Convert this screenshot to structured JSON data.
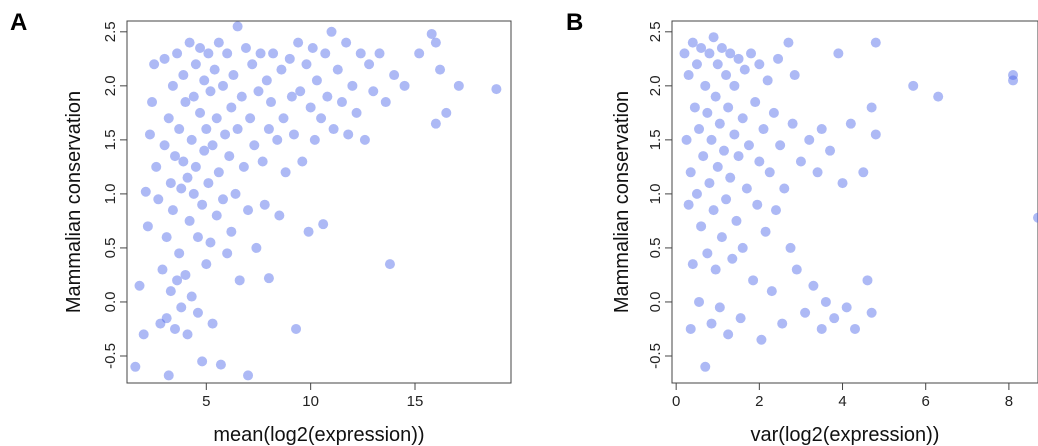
{
  "chart_data": [
    {
      "type": "scatter",
      "panel_label": "A",
      "title": "",
      "xlabel": "mean(log2(expression))",
      "ylabel": "Mammalian conservation",
      "xlim": [
        1.2,
        19.6
      ],
      "ylim": [
        -0.75,
        2.6
      ],
      "xticks": [
        5,
        10,
        15
      ],
      "yticks": [
        -0.5,
        0.0,
        0.5,
        1.0,
        1.5,
        2.0,
        2.5
      ],
      "ytick_labels": [
        "-0.5",
        "0.0",
        "0.5",
        "1.0",
        "1.5",
        "2.0",
        "2.5"
      ],
      "grid": false,
      "marker_color": "#4a63e8",
      "series": [
        {
          "points": [
            [
              1.6,
              -0.6
            ],
            [
              1.8,
              0.15
            ],
            [
              2.0,
              -0.3
            ],
            [
              2.1,
              1.02
            ],
            [
              2.2,
              0.7
            ],
            [
              2.3,
              1.55
            ],
            [
              2.4,
              1.85
            ],
            [
              2.5,
              2.2
            ],
            [
              2.6,
              1.25
            ],
            [
              2.7,
              0.95
            ],
            [
              2.8,
              -0.2
            ],
            [
              2.9,
              0.3
            ],
            [
              3.0,
              2.25
            ],
            [
              3.0,
              1.45
            ],
            [
              3.1,
              -0.15
            ],
            [
              3.1,
              0.6
            ],
            [
              3.2,
              1.7
            ],
            [
              3.2,
              -0.68
            ],
            [
              3.3,
              0.1
            ],
            [
              3.3,
              1.1
            ],
            [
              3.4,
              2.0
            ],
            [
              3.4,
              0.85
            ],
            [
              3.5,
              1.35
            ],
            [
              3.5,
              -0.25
            ],
            [
              3.6,
              2.3
            ],
            [
              3.6,
              0.2
            ],
            [
              3.7,
              1.6
            ],
            [
              3.7,
              0.45
            ],
            [
              3.8,
              1.05
            ],
            [
              3.8,
              -0.05
            ],
            [
              3.9,
              2.1
            ],
            [
              3.9,
              1.3
            ],
            [
              4.0,
              0.25
            ],
            [
              4.0,
              1.85
            ],
            [
              4.1,
              1.15
            ],
            [
              4.1,
              -0.3
            ],
            [
              4.2,
              2.4
            ],
            [
              4.2,
              0.75
            ],
            [
              4.3,
              1.5
            ],
            [
              4.3,
              0.05
            ],
            [
              4.4,
              1.9
            ],
            [
              4.4,
              1.0
            ],
            [
              4.5,
              2.2
            ],
            [
              4.5,
              1.25
            ],
            [
              4.6,
              -0.1
            ],
            [
              4.6,
              0.6
            ],
            [
              4.7,
              1.75
            ],
            [
              4.7,
              2.35
            ],
            [
              4.8,
              0.9
            ],
            [
              4.8,
              -0.55
            ],
            [
              4.9,
              1.4
            ],
            [
              4.9,
              2.05
            ],
            [
              5.0,
              0.35
            ],
            [
              5.0,
              1.6
            ],
            [
              5.1,
              2.3
            ],
            [
              5.1,
              1.1
            ],
            [
              5.2,
              0.55
            ],
            [
              5.2,
              1.95
            ],
            [
              5.3,
              -0.2
            ],
            [
              5.3,
              1.45
            ],
            [
              5.4,
              2.15
            ],
            [
              5.5,
              0.8
            ],
            [
              5.5,
              1.7
            ],
            [
              5.6,
              2.4
            ],
            [
              5.6,
              1.2
            ],
            [
              5.7,
              -0.58
            ],
            [
              5.8,
              0.95
            ],
            [
              5.8,
              2.0
            ],
            [
              5.9,
              1.55
            ],
            [
              6.0,
              0.45
            ],
            [
              6.0,
              2.3
            ],
            [
              6.1,
              1.35
            ],
            [
              6.2,
              1.8
            ],
            [
              6.2,
              0.65
            ],
            [
              6.3,
              2.1
            ],
            [
              6.4,
              1.0
            ],
            [
              6.5,
              2.55
            ],
            [
              6.5,
              1.6
            ],
            [
              6.6,
              0.2
            ],
            [
              6.7,
              1.9
            ],
            [
              6.8,
              1.25
            ],
            [
              6.9,
              2.35
            ],
            [
              7.0,
              -0.68
            ],
            [
              7.0,
              0.85
            ],
            [
              7.1,
              1.7
            ],
            [
              7.2,
              2.2
            ],
            [
              7.3,
              1.45
            ],
            [
              7.4,
              0.5
            ],
            [
              7.5,
              1.95
            ],
            [
              7.6,
              2.3
            ],
            [
              7.7,
              1.3
            ],
            [
              7.8,
              0.9
            ],
            [
              7.9,
              2.05
            ],
            [
              8.0,
              1.6
            ],
            [
              8.0,
              0.22
            ],
            [
              8.1,
              1.85
            ],
            [
              8.2,
              2.3
            ],
            [
              8.4,
              1.5
            ],
            [
              8.5,
              0.8
            ],
            [
              8.6,
              2.15
            ],
            [
              8.7,
              1.7
            ],
            [
              8.8,
              1.2
            ],
            [
              9.0,
              2.25
            ],
            [
              9.1,
              1.9
            ],
            [
              9.2,
              1.55
            ],
            [
              9.3,
              -0.25
            ],
            [
              9.4,
              2.4
            ],
            [
              9.5,
              1.95
            ],
            [
              9.6,
              1.3
            ],
            [
              9.8,
              2.2
            ],
            [
              9.9,
              0.65
            ],
            [
              10.0,
              1.8
            ],
            [
              10.1,
              2.35
            ],
            [
              10.2,
              1.5
            ],
            [
              10.3,
              2.05
            ],
            [
              10.5,
              1.7
            ],
            [
              10.6,
              0.72
            ],
            [
              10.7,
              2.3
            ],
            [
              10.8,
              1.9
            ],
            [
              11.0,
              2.5
            ],
            [
              11.1,
              1.6
            ],
            [
              11.3,
              2.15
            ],
            [
              11.5,
              1.85
            ],
            [
              11.7,
              2.4
            ],
            [
              11.8,
              1.55
            ],
            [
              12.0,
              2.0
            ],
            [
              12.2,
              1.75
            ],
            [
              12.4,
              2.3
            ],
            [
              12.6,
              1.5
            ],
            [
              12.8,
              2.2
            ],
            [
              13.0,
              1.95
            ],
            [
              13.3,
              2.3
            ],
            [
              13.6,
              1.85
            ],
            [
              13.8,
              0.35
            ],
            [
              14.0,
              2.1
            ],
            [
              14.5,
              2.0
            ],
            [
              15.2,
              2.3
            ],
            [
              15.8,
              2.48
            ],
            [
              16.0,
              1.65
            ],
            [
              16.2,
              2.15
            ],
            [
              16.5,
              1.75
            ],
            [
              17.1,
              2.0
            ],
            [
              18.9,
              1.97
            ],
            [
              16.0,
              2.4
            ]
          ]
        }
      ]
    },
    {
      "type": "scatter",
      "panel_label": "B",
      "title": "",
      "xlabel": "var(log2(expression))",
      "ylabel": "Mammalian conservation",
      "xlim": [
        -0.1,
        8.7
      ],
      "ylim": [
        -0.75,
        2.6
      ],
      "xticks": [
        0,
        2,
        4,
        6,
        8
      ],
      "yticks": [
        -0.5,
        0.0,
        0.5,
        1.0,
        1.5,
        2.0,
        2.5
      ],
      "ytick_labels": [
        "-0.5",
        "0.0",
        "0.5",
        "1.0",
        "1.5",
        "2.0",
        "2.5"
      ],
      "grid": false,
      "marker_color": "#4a63e8",
      "series": [
        {
          "points": [
            [
              0.2,
              2.3
            ],
            [
              0.25,
              1.5
            ],
            [
              0.3,
              0.9
            ],
            [
              0.3,
              2.1
            ],
            [
              0.35,
              -0.25
            ],
            [
              0.35,
              1.2
            ],
            [
              0.4,
              2.4
            ],
            [
              0.4,
              0.35
            ],
            [
              0.45,
              1.8
            ],
            [
              0.5,
              1.0
            ],
            [
              0.5,
              2.2
            ],
            [
              0.55,
              0.0
            ],
            [
              0.55,
              1.6
            ],
            [
              0.6,
              2.35
            ],
            [
              0.6,
              0.7
            ],
            [
              0.65,
              1.35
            ],
            [
              0.7,
              -0.6
            ],
            [
              0.7,
              2.0
            ],
            [
              0.75,
              0.45
            ],
            [
              0.75,
              1.75
            ],
            [
              0.8,
              2.3
            ],
            [
              0.8,
              1.1
            ],
            [
              0.85,
              -0.2
            ],
            [
              0.85,
              1.5
            ],
            [
              0.9,
              2.45
            ],
            [
              0.9,
              0.85
            ],
            [
              0.95,
              1.9
            ],
            [
              0.95,
              0.3
            ],
            [
              1.0,
              2.2
            ],
            [
              1.0,
              1.25
            ],
            [
              1.05,
              -0.05
            ],
            [
              1.05,
              1.65
            ],
            [
              1.1,
              2.35
            ],
            [
              1.1,
              0.6
            ],
            [
              1.15,
              1.4
            ],
            [
              1.2,
              2.1
            ],
            [
              1.2,
              0.95
            ],
            [
              1.25,
              -0.3
            ],
            [
              1.25,
              1.8
            ],
            [
              1.3,
              2.3
            ],
            [
              1.3,
              1.15
            ],
            [
              1.35,
              0.4
            ],
            [
              1.4,
              1.55
            ],
            [
              1.4,
              2.0
            ],
            [
              1.45,
              0.75
            ],
            [
              1.5,
              2.25
            ],
            [
              1.5,
              1.35
            ],
            [
              1.55,
              -0.15
            ],
            [
              1.6,
              1.7
            ],
            [
              1.6,
              0.5
            ],
            [
              1.65,
              2.15
            ],
            [
              1.7,
              1.05
            ],
            [
              1.75,
              1.45
            ],
            [
              1.8,
              2.3
            ],
            [
              1.85,
              0.2
            ],
            [
              1.9,
              1.85
            ],
            [
              1.95,
              0.9
            ],
            [
              2.0,
              1.3
            ],
            [
              2.0,
              2.2
            ],
            [
              2.05,
              -0.35
            ],
            [
              2.1,
              1.6
            ],
            [
              2.15,
              0.65
            ],
            [
              2.2,
              2.05
            ],
            [
              2.25,
              1.2
            ],
            [
              2.3,
              0.1
            ],
            [
              2.35,
              1.75
            ],
            [
              2.4,
              0.85
            ],
            [
              2.45,
              2.25
            ],
            [
              2.5,
              1.45
            ],
            [
              2.55,
              -0.2
            ],
            [
              2.6,
              1.05
            ],
            [
              2.7,
              2.4
            ],
            [
              2.75,
              0.5
            ],
            [
              2.8,
              1.65
            ],
            [
              2.85,
              2.1
            ],
            [
              2.9,
              0.3
            ],
            [
              3.0,
              1.3
            ],
            [
              3.1,
              -0.1
            ],
            [
              3.2,
              1.5
            ],
            [
              3.3,
              0.15
            ],
            [
              3.4,
              1.2
            ],
            [
              3.5,
              -0.25
            ],
            [
              3.5,
              1.6
            ],
            [
              3.6,
              0.0
            ],
            [
              3.7,
              1.4
            ],
            [
              3.8,
              -0.15
            ],
            [
              3.9,
              2.3
            ],
            [
              4.0,
              1.1
            ],
            [
              4.1,
              -0.05
            ],
            [
              4.2,
              1.65
            ],
            [
              4.3,
              -0.25
            ],
            [
              4.5,
              1.2
            ],
            [
              4.6,
              0.2
            ],
            [
              4.7,
              1.8
            ],
            [
              4.7,
              -0.1
            ],
            [
              4.8,
              2.4
            ],
            [
              4.8,
              1.55
            ],
            [
              5.7,
              2.0
            ],
            [
              6.3,
              1.9
            ],
            [
              8.1,
              2.1
            ],
            [
              8.1,
              2.05
            ],
            [
              8.7,
              0.78
            ]
          ]
        }
      ]
    }
  ]
}
